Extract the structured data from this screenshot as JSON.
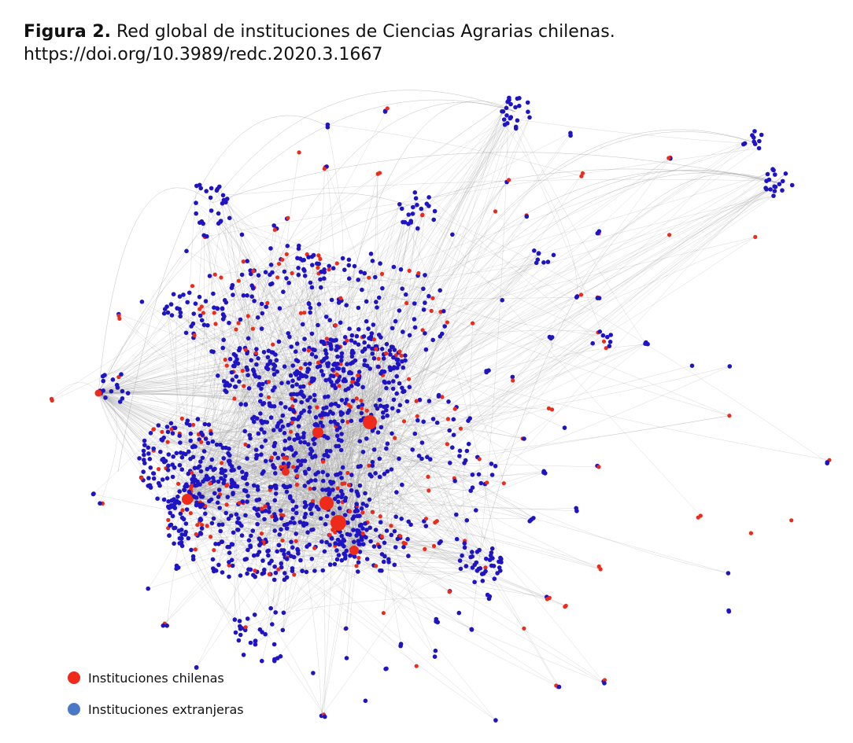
{
  "caption": {
    "prefix": "Figura 2.",
    "title": "Red global de instituciones de Ciencias Agrarias chilenas.",
    "doi": "https://doi.org/10.3989/redc.2020.3.1667"
  },
  "colors": {
    "chilean": "#ee2a1a",
    "foreign": "#1f14c4",
    "legend_foreign": "#4a78c8",
    "edge": "#9a9a9a"
  },
  "legend": [
    {
      "label": "Instituciones chilenas",
      "color": "#ee2a1a"
    },
    {
      "label": "Instituciones extranjeras",
      "color": "#4a78c8"
    }
  ]
}
